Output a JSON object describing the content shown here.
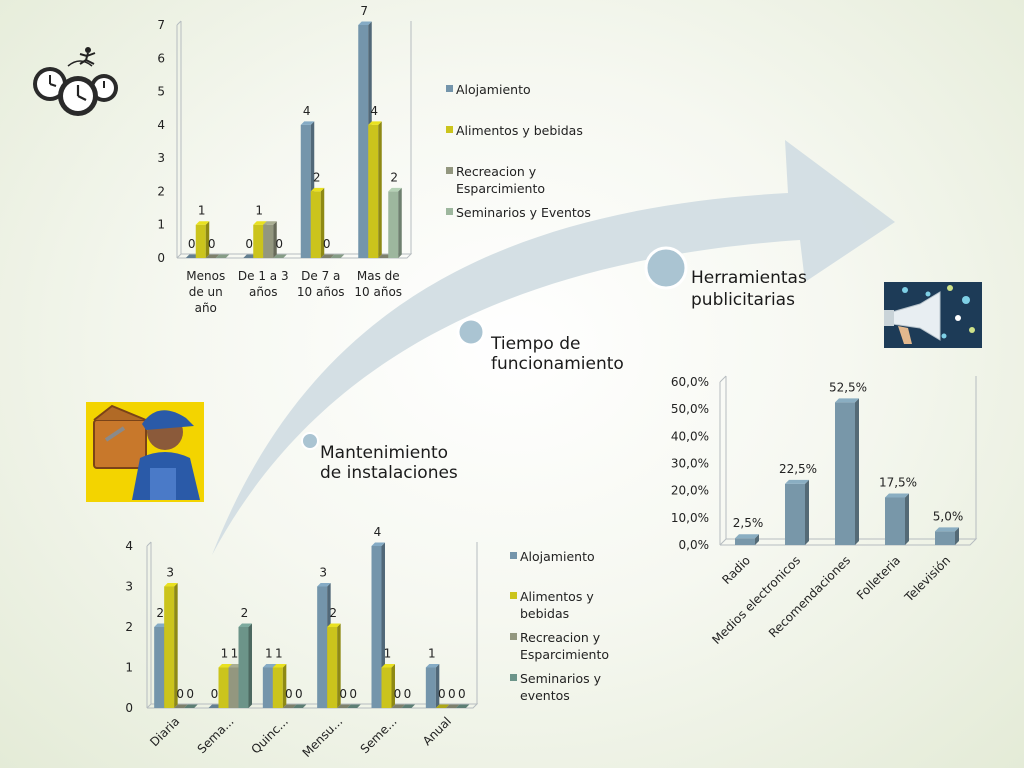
{
  "palette": {
    "alojamiento": "#7495ab",
    "alimentos": "#cbc41c",
    "recreacion": "#93977f",
    "seminarios": "#9db79e",
    "seminarios_bottom": "#6c9489",
    "arrow": "#d2dde3",
    "circle": "#aac4d2",
    "circle_ring": "#ffffff",
    "pct_bar": "#7897a9"
  },
  "icons": {
    "clocks": "clocks-icon",
    "worker": "worker-icon",
    "megaphone": "megaphone-icon"
  },
  "steps": [
    {
      "lines": [
        "Mantenimiento",
        "de instalaciones"
      ]
    },
    {
      "lines": [
        "Tiempo de",
        "funcionamiento"
      ]
    },
    {
      "lines": [
        "Herramientas",
        "publicitarias"
      ]
    }
  ],
  "chart_data": [
    {
      "type": "bar",
      "categories": [
        [
          "Menos",
          "de un",
          "año"
        ],
        [
          "De 1 a 3",
          "años"
        ],
        [
          "De 7 a",
          "10 años"
        ],
        [
          "Mas de",
          "10 años"
        ]
      ],
      "series": [
        {
          "name": "Alojamiento",
          "values": [
            0,
            0,
            4,
            7
          ]
        },
        {
          "name": "Alimentos y bebidas",
          "values": [
            1,
            1,
            2,
            4
          ]
        },
        {
          "name": "Recreacion y Esparcimiento",
          "values": [
            0,
            1,
            0,
            0
          ]
        },
        {
          "name": "Seminarios y Eventos",
          "values": [
            0,
            0,
            0,
            2
          ]
        }
      ],
      "data_labels": [
        [
          "0",
          "1",
          "0",
          null
        ],
        [
          "0",
          "1",
          null,
          "0"
        ],
        [
          "4",
          "2",
          "0",
          null
        ],
        [
          "7",
          "4",
          null,
          "2"
        ]
      ],
      "yticks": [
        "0",
        "1",
        "2",
        "3",
        "4",
        "5",
        "6",
        "7"
      ],
      "ylim": [
        0,
        7
      ],
      "legend": {
        "position": "right",
        "lines": [
          [
            "Alojamiento"
          ],
          [
            "Alimentos y bebidas"
          ],
          [
            "Recreacion y",
            "Esparcimiento"
          ],
          [
            "Seminarios y Eventos"
          ]
        ]
      },
      "grid": false
    },
    {
      "type": "bar",
      "categories": [
        "Radio",
        "Medios electronicos",
        "Recomendaciones",
        "Folleteria",
        "Televisión"
      ],
      "values": [
        2.5,
        22.5,
        52.5,
        17.5,
        5.0
      ],
      "value_labels": [
        "2,5%",
        "22,5%",
        "52,5%",
        "17,5%",
        "5,0%"
      ],
      "yticks": [
        "0,0%",
        "10,0%",
        "20,0%",
        "30,0%",
        "40,0%",
        "50,0%",
        "60,0%"
      ],
      "ylim": [
        0,
        60
      ],
      "grid": false
    },
    {
      "type": "bar",
      "categories": [
        "Diaria",
        "Sema...",
        "Quinc...",
        "Mensu...",
        "Seme...",
        "Anual"
      ],
      "series": [
        {
          "name": "Alojamiento",
          "values": [
            2,
            0,
            1,
            3,
            4,
            1
          ]
        },
        {
          "name": "Alimentos y bebidas",
          "values": [
            3,
            1,
            1,
            2,
            1,
            0
          ]
        },
        {
          "name": "Recreacion y Esparcimiento",
          "values": [
            0,
            1,
            0,
            0,
            0,
            0
          ]
        },
        {
          "name": "Seminarios y eventos",
          "values": [
            0,
            2,
            0,
            0,
            0,
            0
          ]
        }
      ],
      "data_labels": [
        [
          "2",
          "3",
          "0",
          "0"
        ],
        [
          "0",
          "1",
          "1",
          "2"
        ],
        [
          "1",
          "1",
          "0",
          "0"
        ],
        [
          "3",
          "2",
          "0",
          "0"
        ],
        [
          "4",
          "1",
          "0",
          "0"
        ],
        [
          "1",
          "0",
          "0",
          "0"
        ]
      ],
      "yticks": [
        "0",
        "1",
        "2",
        "3",
        "4"
      ],
      "ylim": [
        0,
        4
      ],
      "legend": {
        "position": "right",
        "lines": [
          [
            "Alojamiento"
          ],
          [
            "Alimentos y",
            "bebidas"
          ],
          [
            "Recreacion y",
            "Esparcimiento"
          ],
          [
            "Seminarios y",
            "eventos"
          ]
        ]
      },
      "grid": false
    }
  ]
}
